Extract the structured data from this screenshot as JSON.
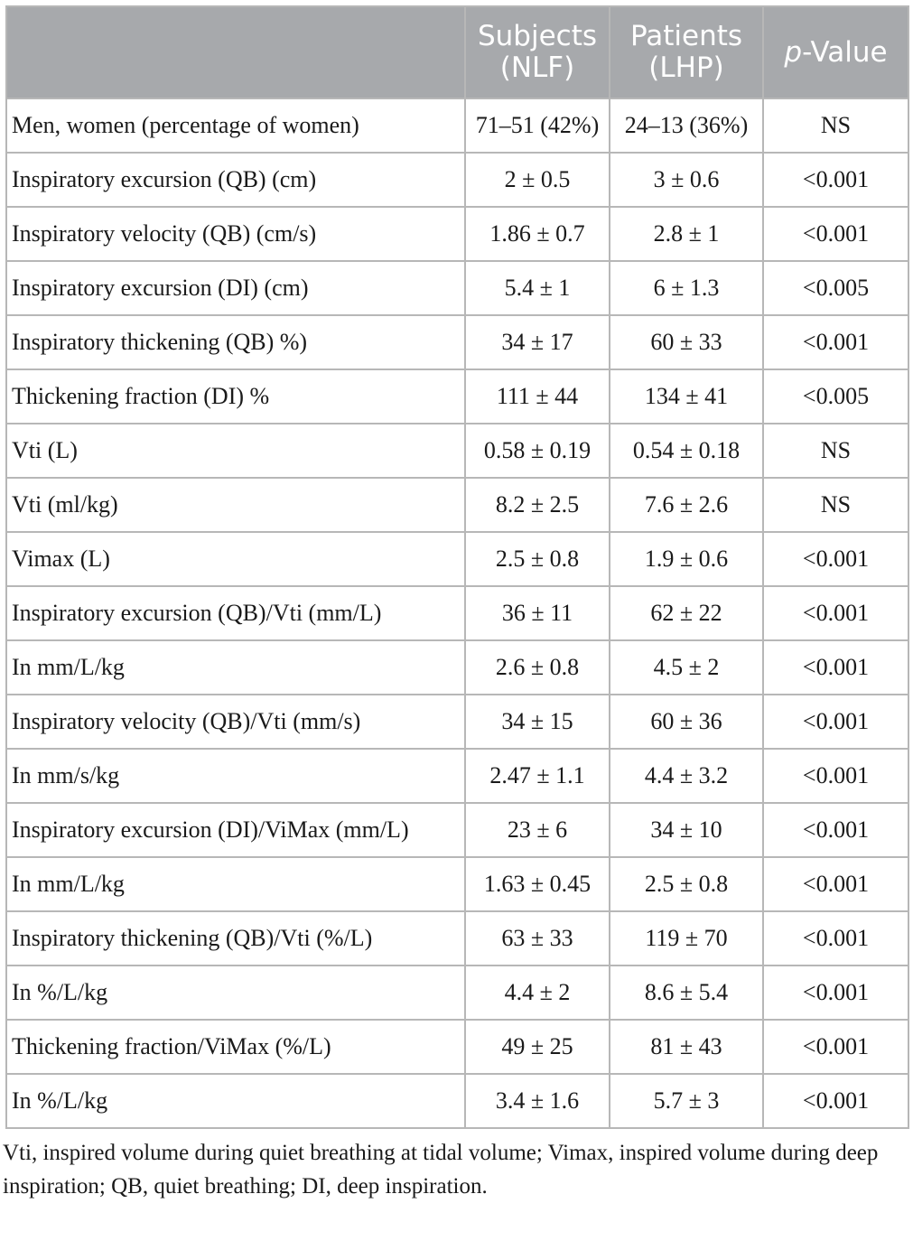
{
  "table": {
    "header": {
      "col1_line1": "Subjects",
      "col1_line2": "(NLF)",
      "col2_line1": "Patients",
      "col2_line2": "(LHP)",
      "col3_italic": "p",
      "col3_rest": "-Value"
    },
    "rows": [
      {
        "label": "Men, women (percentage of women)",
        "subjects": "71–51 (42%)",
        "patients": "24–13 (36%)",
        "p": "NS"
      },
      {
        "label": "Inspiratory excursion (QB) (cm)",
        "subjects": "2 ± 0.5",
        "patients": "3 ± 0.6",
        "p": "<0.001"
      },
      {
        "label": "Inspiratory velocity (QB) (cm/s)",
        "subjects": "1.86 ± 0.7",
        "patients": "2.8 ± 1",
        "p": "<0.001"
      },
      {
        "label": "Inspiratory excursion (DI) (cm)",
        "subjects": "5.4 ± 1",
        "patients": "6 ± 1.3",
        "p": "<0.005"
      },
      {
        "label": "Inspiratory thickening (QB) %)",
        "subjects": "34 ± 17",
        "patients": "60 ± 33",
        "p": "<0.001"
      },
      {
        "label": "Thickening fraction (DI) %",
        "subjects": "111 ± 44",
        "patients": "134 ± 41",
        "p": "<0.005"
      },
      {
        "label": "Vti (L)",
        "subjects": "0.58 ± 0.19",
        "patients": "0.54 ± 0.18",
        "p": "NS"
      },
      {
        "label": "Vti (ml/kg)",
        "subjects": "8.2 ± 2.5",
        "patients": "7.6 ± 2.6",
        "p": "NS"
      },
      {
        "label": "Vimax (L)",
        "subjects": "2.5 ± 0.8",
        "patients": "1.9 ± 0.6",
        "p": "<0.001"
      },
      {
        "label": "Inspiratory excursion (QB)/Vti (mm/L)",
        "subjects": "36 ± 11",
        "patients": "62 ± 22",
        "p": "<0.001"
      },
      {
        "label": "In mm/L/kg",
        "subjects": "2.6 ± 0.8",
        "patients": "4.5 ± 2",
        "p": "<0.001"
      },
      {
        "label": "Inspiratory velocity (QB)/Vti (mm/s)",
        "subjects": "34 ± 15",
        "patients": "60 ± 36",
        "p": "<0.001"
      },
      {
        "label": "In mm/s/kg",
        "subjects": "2.47 ± 1.1",
        "patients": "4.4 ± 3.2",
        "p": "<0.001"
      },
      {
        "label": "Inspiratory excursion (DI)/ViMax (mm/L)",
        "subjects": "23 ± 6",
        "patients": "34 ± 10",
        "p": "<0.001"
      },
      {
        "label": "In mm/L/kg",
        "subjects": "1.63 ± 0.45",
        "patients": "2.5 ± 0.8",
        "p": "<0.001"
      },
      {
        "label": "Inspiratory thickening (QB)/Vti (%/L)",
        "subjects": "63 ± 33",
        "patients": "119 ± 70",
        "p": "<0.001"
      },
      {
        "label": "In %/L/kg",
        "subjects": "4.4 ± 2",
        "patients": "8.6 ± 5.4",
        "p": "<0.001"
      },
      {
        "label": "Thickening fraction/ViMax (%/L)",
        "subjects": "49 ± 25",
        "patients": "81 ± 43",
        "p": "<0.001"
      },
      {
        "label": "In %/L/kg",
        "subjects": "3.4 ± 1.6",
        "patients": "5.7 ± 3",
        "p": "<0.001"
      }
    ]
  },
  "footnote": "Vti, inspired volume during quiet breathing at tidal volume; Vimax, inspired volume during deep inspiration; QB, quiet breathing; DI, deep inspiration."
}
